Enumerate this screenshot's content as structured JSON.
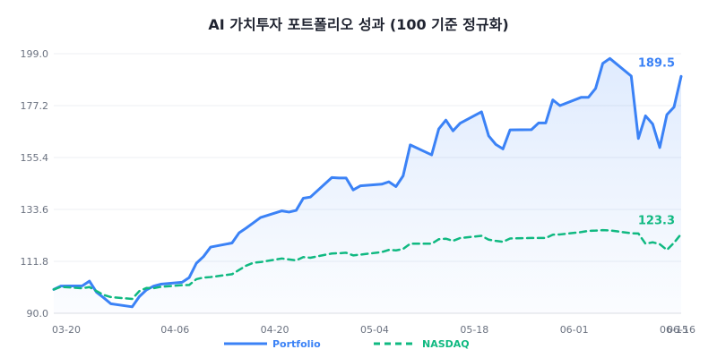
{
  "chart_data": {
    "type": "line",
    "title": "AI 가치투자 포트폴리오 성과 (100 기준 정규화)",
    "xlabel": "",
    "ylabel": "",
    "ylim": [
      90.0,
      199.0
    ],
    "y_ticks": [
      "90.0",
      "111.8",
      "133.6",
      "155.4",
      "177.2",
      "199.0"
    ],
    "x_ticks": [
      {
        "date": "2025-03-20",
        "label": "03-20"
      },
      {
        "date": "2025-04-06",
        "label": "04-06"
      },
      {
        "date": "2025-04-20",
        "label": "04-20"
      },
      {
        "date": "2025-05-04",
        "label": "05-04"
      },
      {
        "date": "2025-05-18",
        "label": "05-18"
      },
      {
        "date": "2025-06-01",
        "label": "06-01"
      },
      {
        "date": "2025-06-15",
        "label": "06-15"
      },
      {
        "date": "2025-06-16",
        "label": "06-16"
      }
    ],
    "grid": true,
    "legend_position": "bottom",
    "series": [
      {
        "name": "Portfolio",
        "color": "#3b82f6",
        "style": "solid",
        "end_label": "189.5",
        "points": [
          [
            "2025-03-20",
            100.0
          ],
          [
            "2025-03-21",
            101.4
          ],
          [
            "2025-03-24",
            101.5
          ],
          [
            "2025-03-25",
            103.5
          ],
          [
            "2025-03-26",
            98.8
          ],
          [
            "2025-03-27",
            96.5
          ],
          [
            "2025-03-28",
            94.0
          ],
          [
            "2025-03-31",
            92.7
          ],
          [
            "2025-04-01",
            97.0
          ],
          [
            "2025-04-02",
            99.8
          ],
          [
            "2025-04-03",
            101.4
          ],
          [
            "2025-04-04",
            102.2
          ],
          [
            "2025-04-07",
            103.0
          ],
          [
            "2025-04-08",
            105.0
          ],
          [
            "2025-04-09",
            111.0
          ],
          [
            "2025-04-10",
            113.8
          ],
          [
            "2025-04-11",
            117.8
          ],
          [
            "2025-04-14",
            119.5
          ],
          [
            "2025-04-15",
            123.8
          ],
          [
            "2025-04-16",
            125.8
          ],
          [
            "2025-04-17",
            128.0
          ],
          [
            "2025-04-18",
            130.2
          ],
          [
            "2025-04-21",
            133.0
          ],
          [
            "2025-04-22",
            132.5
          ],
          [
            "2025-04-23",
            133.2
          ],
          [
            "2025-04-24",
            138.3
          ],
          [
            "2025-04-25",
            138.8
          ],
          [
            "2025-04-28",
            147.0
          ],
          [
            "2025-04-29",
            146.8
          ],
          [
            "2025-04-30",
            146.8
          ],
          [
            "2025-05-01",
            141.8
          ],
          [
            "2025-05-02",
            143.5
          ],
          [
            "2025-05-05",
            144.2
          ],
          [
            "2025-05-06",
            145.2
          ],
          [
            "2025-05-07",
            143.2
          ],
          [
            "2025-05-08",
            147.7
          ],
          [
            "2025-05-09",
            160.7
          ],
          [
            "2025-05-12",
            156.5
          ],
          [
            "2025-05-13",
            167.4
          ],
          [
            "2025-05-14",
            171.1
          ],
          [
            "2025-05-15",
            166.6
          ],
          [
            "2025-05-16",
            169.8
          ],
          [
            "2025-05-19",
            174.6
          ],
          [
            "2025-05-20",
            164.5
          ],
          [
            "2025-05-21",
            160.9
          ],
          [
            "2025-05-22",
            159.0
          ],
          [
            "2025-05-23",
            167.0
          ],
          [
            "2025-05-26",
            167.1
          ],
          [
            "2025-05-27",
            169.9
          ],
          [
            "2025-05-28",
            169.9
          ],
          [
            "2025-05-29",
            179.6
          ],
          [
            "2025-05-30",
            177.2
          ],
          [
            "2025-06-02",
            180.7
          ],
          [
            "2025-06-03",
            180.7
          ],
          [
            "2025-06-04",
            184.4
          ],
          [
            "2025-06-05",
            194.9
          ],
          [
            "2025-06-06",
            197.0
          ],
          [
            "2025-06-09",
            189.6
          ],
          [
            "2025-06-10",
            163.4
          ],
          [
            "2025-06-11",
            172.9
          ],
          [
            "2025-06-12",
            169.5
          ],
          [
            "2025-06-13",
            159.6
          ],
          [
            "2025-06-14",
            173.4
          ],
          [
            "2025-06-15",
            176.6
          ],
          [
            "2025-06-16",
            189.5
          ]
        ]
      },
      {
        "name": "NASDAQ",
        "color": "#10b981",
        "style": "dashed",
        "end_label": "123.3",
        "points": [
          [
            "2025-03-20",
            100.0
          ],
          [
            "2025-03-21",
            101.1
          ],
          [
            "2025-03-24",
            100.5
          ],
          [
            "2025-03-25",
            101.0
          ],
          [
            "2025-03-26",
            99.3
          ],
          [
            "2025-03-27",
            97.7
          ],
          [
            "2025-03-28",
            96.8
          ],
          [
            "2025-03-31",
            96.0
          ],
          [
            "2025-04-01",
            99.3
          ],
          [
            "2025-04-02",
            100.6
          ],
          [
            "2025-04-03",
            100.5
          ],
          [
            "2025-04-04",
            101.1
          ],
          [
            "2025-04-07",
            101.8
          ],
          [
            "2025-04-08",
            101.9
          ],
          [
            "2025-04-09",
            104.3
          ],
          [
            "2025-04-10",
            105.0
          ],
          [
            "2025-04-11",
            105.2
          ],
          [
            "2025-04-14",
            106.4
          ],
          [
            "2025-04-15",
            108.2
          ],
          [
            "2025-04-16",
            110.0
          ],
          [
            "2025-04-17",
            111.2
          ],
          [
            "2025-04-18",
            111.5
          ],
          [
            "2025-04-21",
            113.0
          ],
          [
            "2025-04-22",
            112.6
          ],
          [
            "2025-04-23",
            112.2
          ],
          [
            "2025-04-24",
            113.6
          ],
          [
            "2025-04-25",
            113.3
          ],
          [
            "2025-04-28",
            115.1
          ],
          [
            "2025-04-29",
            115.2
          ],
          [
            "2025-04-30",
            115.4
          ],
          [
            "2025-05-01",
            114.3
          ],
          [
            "2025-05-02",
            114.6
          ],
          [
            "2025-05-05",
            115.7
          ],
          [
            "2025-05-06",
            116.6
          ],
          [
            "2025-05-07",
            116.4
          ],
          [
            "2025-05-08",
            117.0
          ],
          [
            "2025-05-09",
            119.2
          ],
          [
            "2025-05-12",
            119.2
          ],
          [
            "2025-05-13",
            121.1
          ],
          [
            "2025-05-14",
            121.3
          ],
          [
            "2025-05-15",
            120.4
          ],
          [
            "2025-05-16",
            121.6
          ],
          [
            "2025-05-19",
            122.5
          ],
          [
            "2025-05-20",
            120.9
          ],
          [
            "2025-05-21",
            120.4
          ],
          [
            "2025-05-22",
            120.0
          ],
          [
            "2025-05-23",
            121.4
          ],
          [
            "2025-05-26",
            121.6
          ],
          [
            "2025-05-27",
            121.6
          ],
          [
            "2025-05-28",
            121.6
          ],
          [
            "2025-05-29",
            123.0
          ],
          [
            "2025-05-30",
            123.1
          ],
          [
            "2025-06-02",
            124.1
          ],
          [
            "2025-06-03",
            124.6
          ],
          [
            "2025-06-04",
            124.7
          ],
          [
            "2025-06-05",
            124.9
          ],
          [
            "2025-06-06",
            124.8
          ],
          [
            "2025-06-09",
            123.6
          ],
          [
            "2025-06-10",
            123.5
          ],
          [
            "2025-06-11",
            119.2
          ],
          [
            "2025-06-12",
            119.8
          ],
          [
            "2025-06-13",
            119.0
          ],
          [
            "2025-06-14",
            116.6
          ],
          [
            "2025-06-15",
            119.6
          ],
          [
            "2025-06-16",
            123.3
          ]
        ]
      }
    ]
  }
}
